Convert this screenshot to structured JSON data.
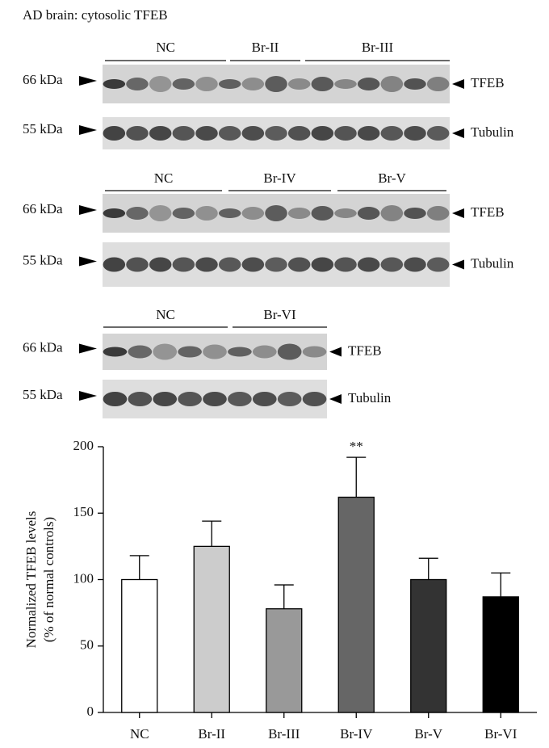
{
  "figure_title": "AD brain: cytosolic TFEB",
  "blots": [
    {
      "groups": [
        "NC",
        "Br-II",
        "Br-III"
      ],
      "rows": [
        {
          "marker": "66 kDa",
          "protein": "TFEB"
        },
        {
          "marker": "55 kDa",
          "protein": "Tubulin"
        }
      ]
    },
    {
      "groups": [
        "NC",
        "Br-IV",
        "Br-V"
      ],
      "rows": [
        {
          "marker": "66 kDa",
          "protein": "TFEB"
        },
        {
          "marker": "55 kDa",
          "protein": "Tubulin"
        }
      ]
    },
    {
      "groups": [
        "NC",
        "Br-VI"
      ],
      "rows": [
        {
          "marker": "66 kDa",
          "protein": "TFEB"
        },
        {
          "marker": "55 kDa",
          "protein": "Tubulin"
        }
      ]
    }
  ],
  "chart_data": {
    "type": "bar",
    "ylabel": [
      "Normalized TFEB levels",
      "(% of normal controls)"
    ],
    "categories": [
      "NC",
      "Br-II",
      "Br-III",
      "Br-IV",
      "Br-V",
      "Br-VI"
    ],
    "values": [
      100,
      125,
      78,
      162,
      100,
      87
    ],
    "errors": [
      18,
      19,
      18,
      30,
      16,
      18
    ],
    "colors": [
      "#ffffff",
      "#cccccc",
      "#999999",
      "#666666",
      "#333333",
      "#000000"
    ],
    "ylim": [
      0,
      200
    ],
    "yticks": [
      0,
      50,
      100,
      150,
      200
    ],
    "annotations": [
      {
        "text": "**",
        "x": "Br-IV"
      }
    ]
  }
}
